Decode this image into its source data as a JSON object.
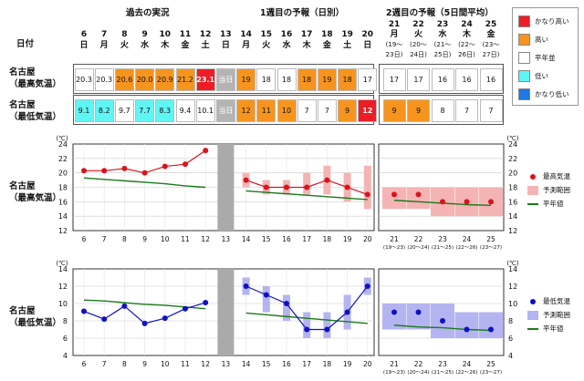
{
  "header": {
    "section_past": "過去の実況",
    "section_week1": "1週目の予報（日別）",
    "section_week2": "2週目の予報（5日間平均）",
    "date_label": "日付"
  },
  "days": [
    {
      "d": "6",
      "w": "日"
    },
    {
      "d": "7",
      "w": "月"
    },
    {
      "d": "8",
      "w": "火"
    },
    {
      "d": "9",
      "w": "水"
    },
    {
      "d": "10",
      "w": "木"
    },
    {
      "d": "11",
      "w": "金"
    },
    {
      "d": "12",
      "w": "土"
    },
    {
      "d": "13",
      "w": "日"
    },
    {
      "d": "14",
      "w": "月"
    },
    {
      "d": "15",
      "w": "火"
    },
    {
      "d": "16",
      "w": "水"
    },
    {
      "d": "17",
      "w": "木"
    },
    {
      "d": "18",
      "w": "金"
    },
    {
      "d": "19",
      "w": "土"
    },
    {
      "d": "20",
      "w": "日"
    }
  ],
  "ranges": [
    {
      "d": "21",
      "w": "月",
      "r": "(19～\n23日)"
    },
    {
      "d": "22",
      "w": "火",
      "r": "(20～\n24日)"
    },
    {
      "d": "23",
      "w": "水",
      "r": "(21～\n25日)"
    },
    {
      "d": "24",
      "w": "木",
      "r": "(22～\n26日)"
    },
    {
      "d": "25",
      "w": "金",
      "r": "(23～\n27日)"
    }
  ],
  "rows": {
    "max_label": "名古屋\n（最高気温）",
    "min_label": "名古屋\n（最低気温）",
    "today_label": "当日",
    "max_daily": [
      {
        "v": "20.3",
        "c": "plain"
      },
      {
        "v": "20.3",
        "c": "plain"
      },
      {
        "v": "20.6",
        "c": "high"
      },
      {
        "v": "20.0",
        "c": "high"
      },
      {
        "v": "20.9",
        "c": "high"
      },
      {
        "v": "21.2",
        "c": "high"
      },
      {
        "v": "23.1",
        "c": "veryhigh"
      },
      {
        "v": "当日",
        "c": "today"
      },
      {
        "v": "19",
        "c": "high"
      },
      {
        "v": "18",
        "c": "plain"
      },
      {
        "v": "18",
        "c": "plain"
      },
      {
        "v": "18",
        "c": "high"
      },
      {
        "v": "19",
        "c": "high"
      },
      {
        "v": "18",
        "c": "high"
      },
      {
        "v": "17",
        "c": "plain"
      }
    ],
    "min_daily": [
      {
        "v": "9.1",
        "c": "low"
      },
      {
        "v": "8.2",
        "c": "low"
      },
      {
        "v": "9.7",
        "c": "plain"
      },
      {
        "v": "7.7",
        "c": "low"
      },
      {
        "v": "8.3",
        "c": "low"
      },
      {
        "v": "9.4",
        "c": "plain"
      },
      {
        "v": "10.1",
        "c": "plain"
      },
      {
        "v": "当日",
        "c": "today"
      },
      {
        "v": "12",
        "c": "high"
      },
      {
        "v": "11",
        "c": "high"
      },
      {
        "v": "10",
        "c": "high"
      },
      {
        "v": "7",
        "c": "plain"
      },
      {
        "v": "7",
        "c": "plain"
      },
      {
        "v": "9",
        "c": "high"
      },
      {
        "v": "12",
        "c": "veryhigh"
      }
    ],
    "max_week2": [
      {
        "v": "17",
        "c": "plain"
      },
      {
        "v": "17",
        "c": "plain"
      },
      {
        "v": "16",
        "c": "plain"
      },
      {
        "v": "16",
        "c": "plain"
      },
      {
        "v": "16",
        "c": "plain"
      }
    ],
    "min_week2": [
      {
        "v": "9",
        "c": "high"
      },
      {
        "v": "9",
        "c": "high"
      },
      {
        "v": "8",
        "c": "plain"
      },
      {
        "v": "7",
        "c": "plain"
      },
      {
        "v": "7",
        "c": "plain"
      }
    ]
  },
  "category_legend": [
    {
      "label": "かなり高い",
      "key": "veryhigh"
    },
    {
      "label": "高い",
      "key": "high"
    },
    {
      "label": "平年並",
      "key": "plain"
    },
    {
      "label": "低い",
      "key": "low"
    },
    {
      "label": "かなり低い",
      "key": "verylow"
    }
  ],
  "colors": {
    "veryhigh": "#ee1c25",
    "high": "#f7941d",
    "plain": "#ffffff",
    "low": "#5ff5f5",
    "verylow": "#1e78e6",
    "today": "#b4b4b4",
    "max_line": "#d9141e",
    "max_range": "#f5b4b4",
    "min_line": "#1010c8",
    "min_range": "#b4b4f0",
    "normal_line": "#1a7a1a"
  },
  "charts": {
    "max_row_label": "名古屋\n（最高気温）",
    "min_row_label": "名古屋\n（最低気温）",
    "unit": "(℃)",
    "max_legend": [
      "最高気温",
      "予測範囲",
      "平年値"
    ],
    "min_legend": [
      "最低気温",
      "予測範囲",
      "平年値"
    ]
  },
  "chart_data": [
    {
      "type": "line",
      "title": "",
      "ylabel": "(℃)",
      "ylim": [
        12,
        24
      ],
      "yticks": [
        12,
        14,
        16,
        18,
        20,
        22,
        24
      ],
      "x": [
        "6",
        "7",
        "8",
        "9",
        "10",
        "11",
        "12",
        "13",
        "14",
        "15",
        "16",
        "17",
        "18",
        "19",
        "20"
      ],
      "x_week2": [
        "21",
        "22",
        "23",
        "24",
        "25"
      ],
      "x_week2_ranges": [
        "(19～23)",
        "(20～24)",
        "(21～25)",
        "(22～26)",
        "(23～27)"
      ],
      "series": [
        {
          "name": "最高気温",
          "observed": [
            20.3,
            20.3,
            20.6,
            20.0,
            20.9,
            21.2,
            23.1
          ],
          "forecast": [
            19,
            18,
            18,
            18,
            19,
            18,
            17
          ],
          "week2": [
            17,
            17,
            16,
            16,
            16
          ]
        },
        {
          "name": "予測範囲",
          "forecast_ranges": [
            [
              18,
              20
            ],
            [
              17,
              19
            ],
            [
              17,
              19
            ],
            [
              17,
              20
            ],
            [
              17,
              21
            ],
            [
              16,
              20
            ],
            [
              15,
              21
            ]
          ],
          "week2_ranges": [
            [
              15,
              18
            ],
            [
              15,
              18
            ],
            [
              14,
              18
            ],
            [
              14,
              18
            ],
            [
              14,
              18
            ]
          ]
        },
        {
          "name": "平年値",
          "past": [
            19.3,
            19.1,
            18.9,
            18.7,
            18.5,
            18.2,
            18.0
          ],
          "week1": [
            17.5,
            17.3,
            17.1,
            16.9,
            16.7,
            16.5,
            16.3
          ],
          "week2": [
            16.2,
            16.0,
            15.8,
            15.6,
            15.5
          ]
        }
      ]
    },
    {
      "type": "line",
      "title": "",
      "ylabel": "(℃)",
      "ylim": [
        4,
        14
      ],
      "yticks": [
        4,
        6,
        8,
        10,
        12,
        14
      ],
      "x": [
        "6",
        "7",
        "8",
        "9",
        "10",
        "11",
        "12",
        "13",
        "14",
        "15",
        "16",
        "17",
        "18",
        "19",
        "20"
      ],
      "x_week2": [
        "21",
        "22",
        "23",
        "24",
        "25"
      ],
      "x_week2_ranges": [
        "(19～23)",
        "(20～24)",
        "(21～25)",
        "(22～26)",
        "(23～27)"
      ],
      "series": [
        {
          "name": "最低気温",
          "observed": [
            9.1,
            8.2,
            9.7,
            7.7,
            8.3,
            9.4,
            10.1
          ],
          "forecast": [
            12,
            11,
            10,
            7,
            7,
            9,
            12
          ],
          "week2": [
            9,
            9,
            8,
            7,
            7
          ]
        },
        {
          "name": "予測範囲",
          "forecast_ranges": [
            [
              11,
              13
            ],
            [
              9,
              12
            ],
            [
              8,
              11
            ],
            [
              6,
              9
            ],
            [
              6,
              9
            ],
            [
              7,
              11
            ],
            [
              11,
              13
            ]
          ],
          "week2_ranges": [
            [
              7,
              10
            ],
            [
              7,
              10
            ],
            [
              6,
              10
            ],
            [
              6,
              9
            ],
            [
              6,
              9
            ]
          ]
        },
        {
          "name": "平年値",
          "past": [
            10.4,
            10.3,
            10.1,
            9.9,
            9.8,
            9.6,
            9.4
          ],
          "week1": [
            8.9,
            8.7,
            8.5,
            8.3,
            8.1,
            7.9,
            7.7
          ],
          "week2": [
            7.5,
            7.3,
            7.2,
            7.0,
            6.9
          ]
        }
      ]
    }
  ]
}
